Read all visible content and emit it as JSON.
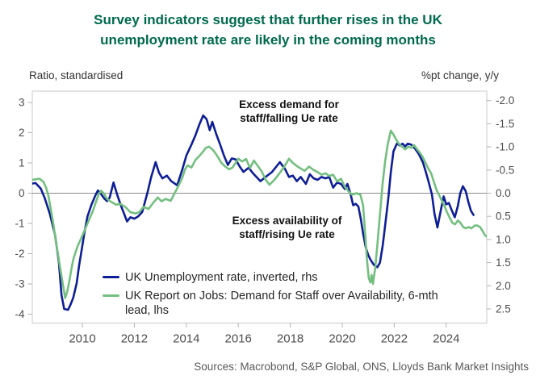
{
  "title": "Survey indicators suggest that further rises in the UK unemployment rate are likely in the coming months",
  "sources": "Sources: Macrobond, S&P Global, ONS, Lloyds Bank Market Insights",
  "annotations": {
    "upper": "Excess demand for staff/falling Ue rate",
    "lower": "Excess availability of staff/rising Ue rate"
  },
  "legend": [
    {
      "label": "UK Unemployment rate, inverted, rhs",
      "color": "#0e1e96"
    },
    {
      "label": "UK Report on Jobs: Demand for Staff over Availability, 6-mth lead, lhs",
      "color": "#74bf80"
    }
  ],
  "colors": {
    "title_green": "#006a4d",
    "navy_line": "#0e1e96",
    "green_line": "#74bf80",
    "zero_line": "#8a8a8a",
    "frame": "#c8c8c8",
    "tick": "#b3b3b3",
    "tick_label": "#4d4d4d"
  },
  "chart_data": {
    "type": "line",
    "title": "Survey indicators suggest that further rises in the UK unemployment rate are likely in the coming months",
    "left_axis": {
      "label": "Ratio, standardised",
      "ticks": [
        3,
        2,
        1,
        0,
        -1,
        -2,
        -3,
        -4
      ]
    },
    "right_axis": {
      "label": "%pt change, y/y",
      "inverted": true,
      "ticks": [
        -2.0,
        -1.5,
        -1.0,
        -0.5,
        0.0,
        0.5,
        1.0,
        1.5,
        2.0,
        2.5
      ]
    },
    "x_axis": {
      "ticks": [
        2010,
        2012,
        2014,
        2016,
        2018,
        2020,
        2022,
        2024
      ],
      "range": [
        2008.0,
        2025.6
      ]
    },
    "grid": "zero-line-only",
    "legend_position": "inside-lower-left",
    "series": [
      {
        "id": "uk-unemployment-rate",
        "name": "UK Unemployment rate, inverted, rhs",
        "axis": "rhs",
        "color": "#0e1e96",
        "points": [
          [
            2008.0,
            -0.2
          ],
          [
            2008.2,
            -0.22
          ],
          [
            2008.4,
            -0.1
          ],
          [
            2008.55,
            0.1
          ],
          [
            2008.75,
            0.45
          ],
          [
            2008.95,
            0.9
          ],
          [
            2009.1,
            1.5
          ],
          [
            2009.2,
            2.2
          ],
          [
            2009.3,
            2.5
          ],
          [
            2009.45,
            2.52
          ],
          [
            2009.55,
            2.4
          ],
          [
            2009.65,
            2.26
          ],
          [
            2009.78,
            1.95
          ],
          [
            2009.88,
            1.55
          ],
          [
            2009.98,
            1.2
          ],
          [
            2010.08,
            0.85
          ],
          [
            2010.2,
            0.5
          ],
          [
            2010.35,
            0.25
          ],
          [
            2010.5,
            0.05
          ],
          [
            2010.6,
            -0.06
          ],
          [
            2010.72,
            0.02
          ],
          [
            2010.85,
            0.12
          ],
          [
            2010.95,
            0.17
          ],
          [
            2011.05,
            0.1
          ],
          [
            2011.2,
            -0.23
          ],
          [
            2011.35,
            0.05
          ],
          [
            2011.5,
            0.29
          ],
          [
            2011.72,
            0.61
          ],
          [
            2011.85,
            0.52
          ],
          [
            2012.0,
            0.55
          ],
          [
            2012.15,
            0.5
          ],
          [
            2012.3,
            0.41
          ],
          [
            2012.5,
            0.0
          ],
          [
            2012.65,
            -0.35
          ],
          [
            2012.82,
            -0.67
          ],
          [
            2012.95,
            -0.44
          ],
          [
            2013.08,
            -0.32
          ],
          [
            2013.25,
            -0.38
          ],
          [
            2013.42,
            -0.26
          ],
          [
            2013.65,
            -0.17
          ],
          [
            2013.85,
            -0.52
          ],
          [
            2014.0,
            -0.81
          ],
          [
            2014.2,
            -1.05
          ],
          [
            2014.35,
            -1.25
          ],
          [
            2014.5,
            -1.48
          ],
          [
            2014.65,
            -1.68
          ],
          [
            2014.78,
            -1.6
          ],
          [
            2014.9,
            -1.36
          ],
          [
            2015.0,
            -1.54
          ],
          [
            2015.15,
            -1.28
          ],
          [
            2015.3,
            -1.05
          ],
          [
            2015.45,
            -0.81
          ],
          [
            2015.6,
            -0.61
          ],
          [
            2015.75,
            -0.75
          ],
          [
            2015.9,
            -0.73
          ],
          [
            2016.05,
            -0.58
          ],
          [
            2016.2,
            -0.46
          ],
          [
            2016.4,
            -0.55
          ],
          [
            2016.55,
            -0.44
          ],
          [
            2016.7,
            -0.35
          ],
          [
            2016.85,
            -0.26
          ],
          [
            2017.05,
            -0.35
          ],
          [
            2017.3,
            -0.46
          ],
          [
            2017.6,
            -0.67
          ],
          [
            2017.8,
            -0.52
          ],
          [
            2017.95,
            -0.35
          ],
          [
            2018.1,
            -0.38
          ],
          [
            2018.25,
            -0.26
          ],
          [
            2018.4,
            -0.35
          ],
          [
            2018.6,
            -0.2
          ],
          [
            2018.75,
            -0.41
          ],
          [
            2018.9,
            -0.32
          ],
          [
            2019.05,
            -0.29
          ],
          [
            2019.2,
            -0.35
          ],
          [
            2019.35,
            -0.32
          ],
          [
            2019.5,
            -0.35
          ],
          [
            2019.65,
            -0.12
          ],
          [
            2019.8,
            -0.23
          ],
          [
            2019.95,
            -0.2
          ],
          [
            2020.1,
            -0.09
          ],
          [
            2020.2,
            -0.2
          ],
          [
            2020.32,
            0.02
          ],
          [
            2020.42,
            0.26
          ],
          [
            2020.52,
            0.23
          ],
          [
            2020.62,
            0.29
          ],
          [
            2020.72,
            0.58
          ],
          [
            2020.8,
            0.87
          ],
          [
            2020.9,
            1.16
          ],
          [
            2021.0,
            1.34
          ],
          [
            2021.1,
            1.45
          ],
          [
            2021.22,
            1.55
          ],
          [
            2021.35,
            1.6
          ],
          [
            2021.45,
            1.5
          ],
          [
            2021.56,
            1.12
          ],
          [
            2021.66,
            0.64
          ],
          [
            2021.77,
            0.12
          ],
          [
            2021.87,
            -0.46
          ],
          [
            2021.97,
            -0.9
          ],
          [
            2022.1,
            -1.07
          ],
          [
            2022.22,
            -1.03
          ],
          [
            2022.32,
            -1.07
          ],
          [
            2022.42,
            -1.01
          ],
          [
            2022.52,
            -1.07
          ],
          [
            2022.65,
            -1.05
          ],
          [
            2022.8,
            -0.96
          ],
          [
            2022.95,
            -0.84
          ],
          [
            2023.1,
            -0.67
          ],
          [
            2023.2,
            -0.49
          ],
          [
            2023.3,
            -0.29
          ],
          [
            2023.45,
            0.03
          ],
          [
            2023.55,
            0.45
          ],
          [
            2023.66,
            0.74
          ],
          [
            2023.78,
            0.4
          ],
          [
            2023.9,
            0.07
          ],
          [
            2024.0,
            0.24
          ],
          [
            2024.1,
            0.21
          ],
          [
            2024.22,
            0.38
          ],
          [
            2024.33,
            0.52
          ],
          [
            2024.44,
            0.29
          ],
          [
            2024.54,
            0.0
          ],
          [
            2024.64,
            -0.15
          ],
          [
            2024.75,
            -0.04
          ],
          [
            2024.85,
            0.19
          ],
          [
            2024.95,
            0.38
          ],
          [
            2025.05,
            0.47
          ]
        ]
      },
      {
        "id": "report-on-jobs",
        "name": "UK Report on Jobs: Demand for Staff over Availability, 6-mth lead, lhs",
        "axis": "lhs",
        "color": "#74bf80",
        "points": [
          [
            2008.0,
            0.43
          ],
          [
            2008.2,
            0.46
          ],
          [
            2008.35,
            0.48
          ],
          [
            2008.5,
            0.38
          ],
          [
            2008.6,
            0.2
          ],
          [
            2008.7,
            -0.1
          ],
          [
            2008.8,
            -0.6
          ],
          [
            2008.9,
            -1.1
          ],
          [
            2008.98,
            -1.6
          ],
          [
            2009.08,
            -2.1
          ],
          [
            2009.17,
            -2.6
          ],
          [
            2009.25,
            -3.0
          ],
          [
            2009.34,
            -3.47
          ],
          [
            2009.42,
            -3.25
          ],
          [
            2009.5,
            -2.9
          ],
          [
            2009.58,
            -2.5
          ],
          [
            2009.65,
            -2.2
          ],
          [
            2009.72,
            -2.0
          ],
          [
            2009.82,
            -1.75
          ],
          [
            2009.95,
            -1.5
          ],
          [
            2010.1,
            -1.2
          ],
          [
            2010.25,
            -0.9
          ],
          [
            2010.4,
            -0.6
          ],
          [
            2010.52,
            -0.3
          ],
          [
            2010.62,
            -0.05
          ],
          [
            2010.72,
            0.08
          ],
          [
            2010.82,
            0.0
          ],
          [
            2010.95,
            -0.19
          ],
          [
            2011.1,
            -0.28
          ],
          [
            2011.3,
            -0.38
          ],
          [
            2011.45,
            -0.35
          ],
          [
            2011.65,
            -0.45
          ],
          [
            2011.85,
            -0.63
          ],
          [
            2012.05,
            -0.67
          ],
          [
            2012.2,
            -0.62
          ],
          [
            2012.35,
            -0.45
          ],
          [
            2012.55,
            -0.52
          ],
          [
            2012.7,
            -0.35
          ],
          [
            2012.9,
            -0.14
          ],
          [
            2013.05,
            -0.27
          ],
          [
            2013.2,
            -0.19
          ],
          [
            2013.4,
            -0.25
          ],
          [
            2013.55,
            0.0
          ],
          [
            2013.68,
            0.21
          ],
          [
            2013.85,
            0.52
          ],
          [
            2013.95,
            0.79
          ],
          [
            2014.05,
            0.92
          ],
          [
            2014.2,
            0.85
          ],
          [
            2014.35,
            1.1
          ],
          [
            2014.5,
            1.23
          ],
          [
            2014.65,
            1.38
          ],
          [
            2014.75,
            1.5
          ],
          [
            2014.87,
            1.54
          ],
          [
            2015.0,
            1.45
          ],
          [
            2015.1,
            1.35
          ],
          [
            2015.2,
            1.22
          ],
          [
            2015.35,
            1.0
          ],
          [
            2015.5,
            0.88
          ],
          [
            2015.65,
            0.79
          ],
          [
            2015.78,
            0.85
          ],
          [
            2015.88,
            0.98
          ],
          [
            2016.0,
            1.14
          ],
          [
            2016.15,
            1.05
          ],
          [
            2016.3,
            1.13
          ],
          [
            2016.45,
            0.83
          ],
          [
            2016.6,
            1.08
          ],
          [
            2016.75,
            0.9
          ],
          [
            2016.9,
            0.72
          ],
          [
            2017.05,
            0.45
          ],
          [
            2017.2,
            0.28
          ],
          [
            2017.4,
            0.45
          ],
          [
            2017.55,
            0.62
          ],
          [
            2017.75,
            0.85
          ],
          [
            2017.95,
            1.14
          ],
          [
            2018.1,
            1.0
          ],
          [
            2018.25,
            0.9
          ],
          [
            2018.4,
            0.82
          ],
          [
            2018.55,
            0.74
          ],
          [
            2018.72,
            0.88
          ],
          [
            2018.88,
            0.78
          ],
          [
            2019.05,
            0.7
          ],
          [
            2019.2,
            0.61
          ],
          [
            2019.35,
            0.66
          ],
          [
            2019.5,
            0.57
          ],
          [
            2019.65,
            0.61
          ],
          [
            2019.8,
            0.39
          ],
          [
            2019.95,
            0.48
          ],
          [
            2020.1,
            0.21
          ],
          [
            2020.25,
            0.05
          ],
          [
            2020.38,
            -0.05
          ],
          [
            2020.55,
            0.0
          ],
          [
            2020.7,
            -0.05
          ],
          [
            2020.8,
            -0.4
          ],
          [
            2020.88,
            -1.3
          ],
          [
            2020.95,
            -2.2
          ],
          [
            2021.02,
            -2.8
          ],
          [
            2021.08,
            -2.95
          ],
          [
            2021.13,
            -2.7
          ],
          [
            2021.18,
            -3.0
          ],
          [
            2021.27,
            -2.45
          ],
          [
            2021.35,
            -1.7
          ],
          [
            2021.45,
            -0.7
          ],
          [
            2021.55,
            0.3
          ],
          [
            2021.65,
            1.05
          ],
          [
            2021.75,
            1.63
          ],
          [
            2021.87,
            2.07
          ],
          [
            2021.97,
            1.94
          ],
          [
            2022.08,
            1.76
          ],
          [
            2022.18,
            1.63
          ],
          [
            2022.3,
            1.54
          ],
          [
            2022.42,
            1.45
          ],
          [
            2022.55,
            1.54
          ],
          [
            2022.65,
            1.5
          ],
          [
            2022.76,
            1.59
          ],
          [
            2022.88,
            1.45
          ],
          [
            2023.0,
            1.32
          ],
          [
            2023.1,
            1.19
          ],
          [
            2023.2,
            1.01
          ],
          [
            2023.3,
            0.83
          ],
          [
            2023.42,
            0.66
          ],
          [
            2023.52,
            0.39
          ],
          [
            2023.62,
            0.12
          ],
          [
            2023.72,
            -0.05
          ],
          [
            2023.82,
            -0.23
          ],
          [
            2023.93,
            -0.41
          ],
          [
            2024.03,
            -0.63
          ],
          [
            2024.13,
            -0.81
          ],
          [
            2024.24,
            -0.98
          ],
          [
            2024.34,
            -1.03
          ],
          [
            2024.45,
            -0.9
          ],
          [
            2024.55,
            -0.98
          ],
          [
            2024.65,
            -1.12
          ],
          [
            2024.76,
            -1.16
          ],
          [
            2024.86,
            -1.12
          ],
          [
            2024.97,
            -1.16
          ],
          [
            2025.1,
            -1.07
          ],
          [
            2025.2,
            -1.07
          ],
          [
            2025.3,
            -1.12
          ],
          [
            2025.4,
            -1.25
          ],
          [
            2025.48,
            -1.38
          ],
          [
            2025.55,
            -1.43
          ]
        ]
      }
    ]
  }
}
